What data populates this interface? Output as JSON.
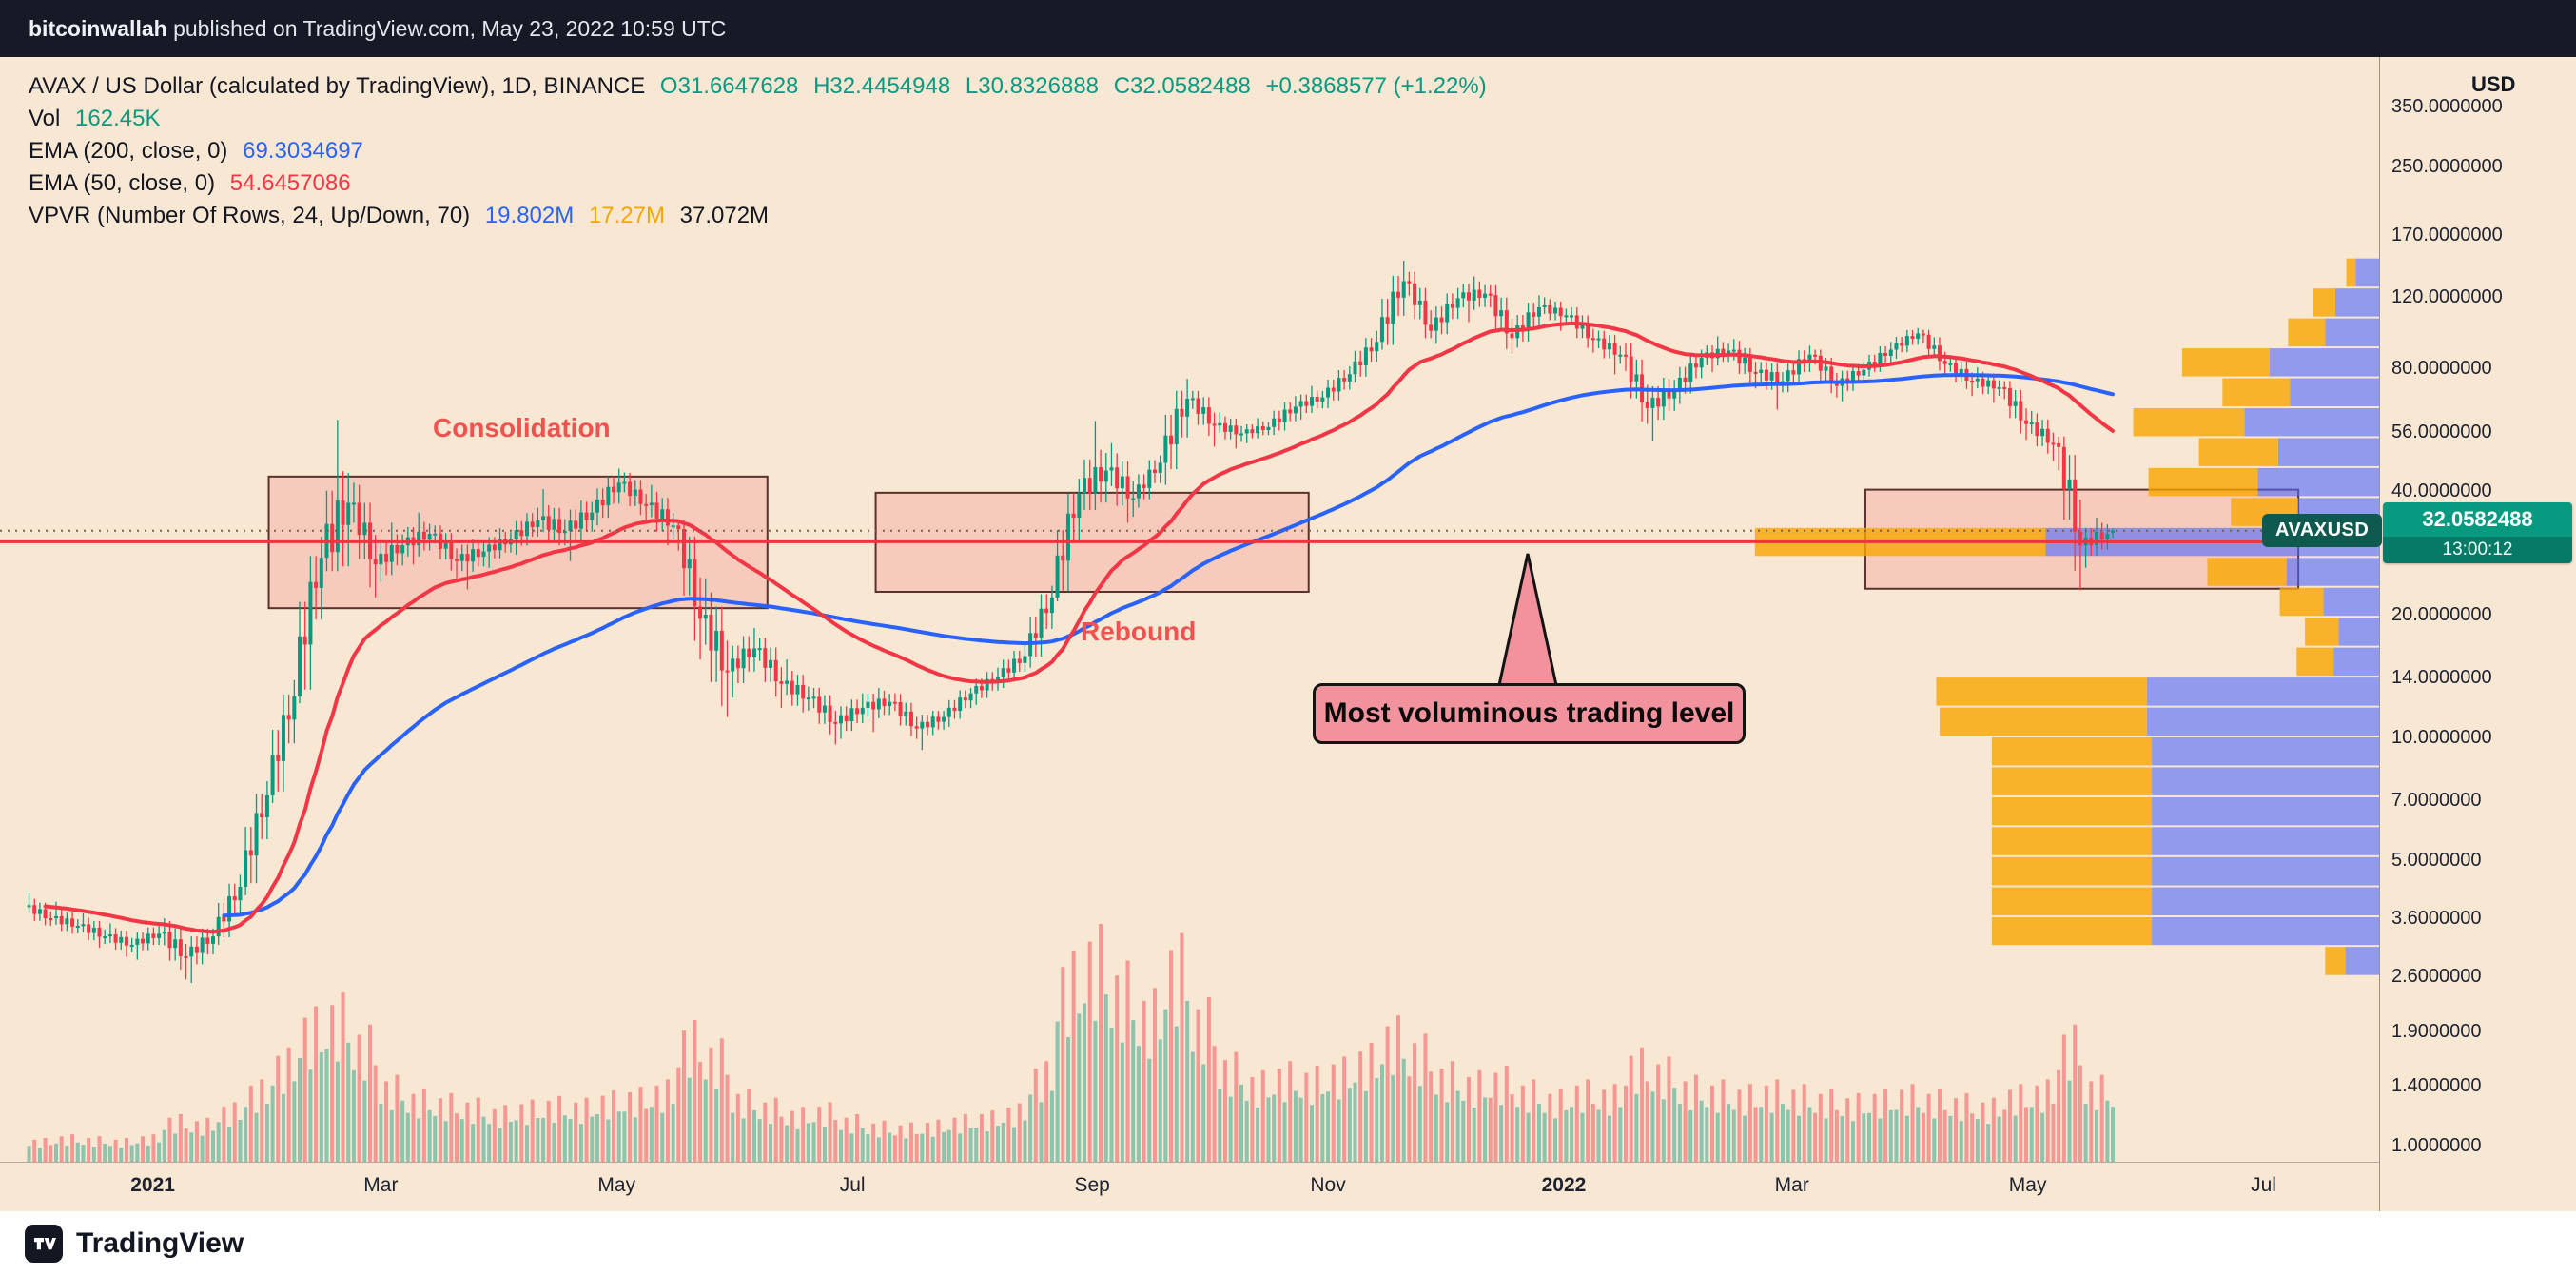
{
  "attribution": {
    "username": "bitcoinwallah",
    "rest": " published on TradingView.com, May 23, 2022 10:59 UTC"
  },
  "legend": {
    "title": "AVAX / US Dollar (calculated by TradingView), 1D, BINANCE",
    "o": "O31.6647628",
    "h": "H32.4454948",
    "l": "L30.8326888",
    "c": "C32.0582488",
    "change": "+0.3868577 (+1.22%)",
    "vol_label": "Vol",
    "vol_value": "162.45K",
    "ema200_label": "EMA (200, close, 0)",
    "ema200_value": "69.3034697",
    "ema50_label": "EMA (50, close, 0)",
    "ema50_value": "54.6457086",
    "vpvr_label": "VPVR (Number Of Rows, 24, Up/Down, 70)",
    "vpvr_up": "19.802M",
    "vpvr_down": "17.27M",
    "vpvr_total": "37.072M"
  },
  "annotations": {
    "consolidation": "Consolidation",
    "rebound": "Rebound",
    "callout": "Most voluminous trading level"
  },
  "price_label": {
    "symbol": "AVAXUSD",
    "price": "32.0582488",
    "countdown": "13:00:12"
  },
  "price_axis": {
    "currency": "USD",
    "ticks": [
      {
        "label": "350.0000000",
        "price": 350
      },
      {
        "label": "250.0000000",
        "price": 250
      },
      {
        "label": "170.0000000",
        "price": 170
      },
      {
        "label": "120.0000000",
        "price": 120
      },
      {
        "label": "80.0000000",
        "price": 80
      },
      {
        "label": "56.0000000",
        "price": 56
      },
      {
        "label": "40.0000000",
        "price": 40
      },
      {
        "label": "20.0000000",
        "price": 20
      },
      {
        "label": "14.0000000",
        "price": 14
      },
      {
        "label": "10.0000000",
        "price": 10
      },
      {
        "label": "7.0000000",
        "price": 7
      },
      {
        "label": "5.0000000",
        "price": 5
      },
      {
        "label": "3.6000000",
        "price": 3.6
      },
      {
        "label": "2.6000000",
        "price": 2.6
      },
      {
        "label": "1.9000000",
        "price": 1.9
      },
      {
        "label": "1.4000000",
        "price": 1.4
      },
      {
        "label": "1.0000000",
        "price": 1.0
      }
    ]
  },
  "time_axis": {
    "ticks": [
      {
        "label": "2021",
        "date": "2021-01-01",
        "bold": true
      },
      {
        "label": "Mar",
        "date": "2021-03-01",
        "bold": false
      },
      {
        "label": "May",
        "date": "2021-05-01",
        "bold": false
      },
      {
        "label": "Jul",
        "date": "2021-07-01",
        "bold": false
      },
      {
        "label": "Sep",
        "date": "2021-09-01",
        "bold": false
      },
      {
        "label": "Nov",
        "date": "2021-11-01",
        "bold": false
      },
      {
        "label": "2022",
        "date": "2022-01-01",
        "bold": true
      },
      {
        "label": "Mar",
        "date": "2022-03-01",
        "bold": false
      },
      {
        "label": "May",
        "date": "2022-05-01",
        "bold": false
      },
      {
        "label": "Jul",
        "date": "2022-07-01",
        "bold": false
      }
    ]
  },
  "footer": {
    "brand": "TradingView"
  },
  "colors": {
    "up": "#089981",
    "down": "#f23645",
    "vol_up": "rgba(8,153,129,0.45)",
    "vol_down": "rgba(242,54,69,0.45)",
    "ema50": "#f23645",
    "ema200": "#2962ff",
    "vpvr_up": "rgba(76,104,255,0.6)",
    "vpvr_down": "rgba(247,166,0,0.8)",
    "zone_fill": "rgba(242,54,69,0.16)",
    "zone_border": "rgba(61,20,20,0.85)",
    "support": "#ef333f",
    "price_line": "#7b6147",
    "callout_bg": "#f2929c",
    "badge_bg": "#089981"
  },
  "chart_data": {
    "type": "candlestick",
    "symbol": "AVAX/USD",
    "exchange": "BINANCE",
    "interval": "1D",
    "scale": "log",
    "title": "AVAX / US Dollar (calculated by TradingView), 1D, BINANCE",
    "current_price": 32.0582488,
    "support_line_price": 30.1,
    "ema50_current": 54.6457086,
    "ema200_current": 69.3034697,
    "ylim": [
      1.0,
      350.0
    ],
    "columns": [
      "week_start",
      "open",
      "high",
      "low",
      "close",
      "volume_K"
    ],
    "weekly_candles": [
      [
        "2020-11-30",
        3.85,
        4.15,
        3.45,
        3.6,
        260
      ],
      [
        "2020-12-07",
        3.6,
        3.95,
        3.3,
        3.45,
        300
      ],
      [
        "2020-12-14",
        3.45,
        3.7,
        3.05,
        3.25,
        280
      ],
      [
        "2020-12-21",
        3.25,
        3.5,
        2.9,
        3.1,
        260
      ],
      [
        "2020-12-28",
        3.1,
        3.45,
        2.85,
        3.3,
        300
      ],
      [
        "2021-01-04",
        3.3,
        3.6,
        2.55,
        2.9,
        520
      ],
      [
        "2021-01-11",
        2.9,
        3.4,
        2.5,
        3.25,
        480
      ],
      [
        "2021-01-18",
        3.25,
        4.6,
        3.1,
        4.3,
        650
      ],
      [
        "2021-01-25",
        4.3,
        7.8,
        4.1,
        7.2,
        900
      ],
      [
        "2021-02-01",
        7.2,
        13.8,
        6.9,
        12.6,
        1250
      ],
      [
        "2021-02-08",
        12.6,
        31.0,
        12.1,
        27.5,
        1700
      ],
      [
        "2021-02-15",
        27.5,
        59.9,
        25.5,
        37.5,
        1850
      ],
      [
        "2021-02-22",
        37.5,
        42.0,
        22.0,
        26.5,
        1500
      ],
      [
        "2021-03-01",
        26.5,
        33.5,
        24.0,
        29.5,
        950
      ],
      [
        "2021-03-08",
        29.5,
        35.5,
        26.5,
        31.5,
        800
      ],
      [
        "2021-03-15",
        31.5,
        33.0,
        24.5,
        27.0,
        750
      ],
      [
        "2021-03-22",
        27.0,
        30.5,
        23.0,
        28.5,
        700
      ],
      [
        "2021-03-29",
        28.5,
        32.5,
        26.0,
        30.5,
        620
      ],
      [
        "2021-04-05",
        30.5,
        36.5,
        28.0,
        34.0,
        680
      ],
      [
        "2021-04-12",
        34.0,
        40.5,
        29.5,
        32.0,
        720
      ],
      [
        "2021-04-19",
        32.0,
        38.0,
        27.0,
        35.5,
        700
      ],
      [
        "2021-04-26",
        35.5,
        45.5,
        33.0,
        42.0,
        780
      ],
      [
        "2021-05-03",
        42.0,
        44.5,
        33.5,
        37.0,
        820
      ],
      [
        "2021-05-10",
        37.0,
        41.5,
        29.5,
        33.0,
        900
      ],
      [
        "2021-05-17",
        33.0,
        34.0,
        15.5,
        19.5,
        1550
      ],
      [
        "2021-05-24",
        19.5,
        24.5,
        11.2,
        14.5,
        1350
      ],
      [
        "2021-05-31",
        14.5,
        18.5,
        12.5,
        16.5,
        800
      ],
      [
        "2021-06-07",
        16.5,
        17.5,
        11.8,
        13.5,
        700
      ],
      [
        "2021-06-14",
        13.5,
        15.5,
        11.5,
        12.5,
        600
      ],
      [
        "2021-06-21",
        12.5,
        13.2,
        9.6,
        10.8,
        650
      ],
      [
        "2021-06-28",
        10.8,
        12.8,
        9.9,
        11.8,
        520
      ],
      [
        "2021-07-05",
        11.8,
        13.2,
        10.3,
        12.2,
        450
      ],
      [
        "2021-07-12",
        12.2,
        12.8,
        9.9,
        10.5,
        430
      ],
      [
        "2021-07-19",
        10.5,
        11.6,
        9.3,
        11.2,
        460
      ],
      [
        "2021-07-26",
        11.2,
        13.2,
        10.6,
        12.8,
        520
      ],
      [
        "2021-08-02",
        12.8,
        14.8,
        12.0,
        14.0,
        560
      ],
      [
        "2021-08-09",
        14.0,
        16.8,
        13.2,
        15.8,
        640
      ],
      [
        "2021-08-16",
        15.8,
        23.5,
        14.8,
        22.0,
        1100
      ],
      [
        "2021-08-23",
        22.0,
        43.0,
        21.5,
        39.5,
        2300
      ],
      [
        "2021-08-30",
        39.5,
        59.5,
        36.0,
        45.0,
        2600
      ],
      [
        "2021-09-06",
        45.0,
        52.5,
        33.5,
        38.5,
        2200
      ],
      [
        "2021-09-13",
        38.5,
        49.0,
        36.5,
        47.0,
        1900
      ],
      [
        "2021-09-20",
        47.0,
        75.5,
        41.5,
        67.5,
        2500
      ],
      [
        "2021-09-27",
        67.5,
        70.5,
        51.5,
        58.0,
        1800
      ],
      [
        "2021-10-04",
        58.0,
        62.5,
        51.0,
        55.5,
        1200
      ],
      [
        "2021-10-11",
        55.5,
        60.5,
        52.5,
        57.5,
        1000
      ],
      [
        "2021-10-18",
        57.5,
        68.5,
        55.0,
        64.5,
        1100
      ],
      [
        "2021-10-25",
        64.5,
        72.5,
        60.0,
        68.0,
        1050
      ],
      [
        "2021-11-01",
        68.0,
        81.0,
        64.0,
        77.5,
        1150
      ],
      [
        "2021-11-08",
        77.5,
        99.0,
        74.0,
        93.0,
        1300
      ],
      [
        "2021-11-15",
        93.0,
        147.0,
        89.0,
        131.0,
        1600
      ],
      [
        "2021-11-22",
        131.0,
        138.0,
        95.0,
        99.0,
        1400
      ],
      [
        "2021-11-29",
        99.0,
        126.0,
        92.0,
        119.0,
        1100
      ],
      [
        "2021-12-06",
        119.0,
        134.5,
        104.0,
        122.0,
        1000
      ],
      [
        "2021-12-13",
        122.0,
        128.0,
        87.0,
        95.0,
        1050
      ],
      [
        "2021-12-20",
        95.0,
        121.0,
        90.0,
        113.0,
        900
      ],
      [
        "2021-12-27",
        113.0,
        119.5,
        99.0,
        108.0,
        800
      ],
      [
        "2022-01-03",
        108.0,
        113.0,
        87.5,
        94.0,
        900
      ],
      [
        "2022-01-10",
        94.0,
        99.0,
        77.5,
        86.5,
        850
      ],
      [
        "2022-01-17",
        86.5,
        92.5,
        58.5,
        64.0,
        1250
      ],
      [
        "2022-01-24",
        64.0,
        76.0,
        53.0,
        70.5,
        1150
      ],
      [
        "2022-01-31",
        70.5,
        89.0,
        65.5,
        85.0,
        950
      ],
      [
        "2022-02-07",
        85.0,
        96.0,
        78.5,
        88.5,
        900
      ],
      [
        "2022-02-14",
        88.5,
        94.5,
        71.5,
        78.0,
        850
      ],
      [
        "2022-02-21",
        78.0,
        83.0,
        63.5,
        74.5,
        900
      ],
      [
        "2022-02-28",
        74.5,
        91.0,
        70.0,
        86.5,
        850
      ],
      [
        "2022-03-07",
        86.5,
        89.0,
        68.0,
        72.5,
        800
      ],
      [
        "2022-03-14",
        72.5,
        83.0,
        66.5,
        79.5,
        750
      ],
      [
        "2022-03-21",
        79.5,
        93.0,
        76.5,
        89.0,
        800
      ],
      [
        "2022-03-28",
        89.0,
        100.5,
        84.5,
        97.5,
        850
      ],
      [
        "2022-04-04",
        97.5,
        99.5,
        77.5,
        82.0,
        800
      ],
      [
        "2022-04-11",
        82.0,
        86.0,
        68.5,
        74.5,
        750
      ],
      [
        "2022-04-18",
        74.5,
        80.5,
        66.0,
        72.0,
        700
      ],
      [
        "2022-04-25",
        72.0,
        74.5,
        53.5,
        58.5,
        850
      ],
      [
        "2022-05-02",
        58.5,
        63.0,
        47.5,
        52.5,
        900
      ],
      [
        "2022-05-09",
        52.5,
        54.5,
        22.9,
        29.5,
        1500
      ],
      [
        "2022-05-16",
        29.5,
        34.5,
        26.0,
        31.5,
        950
      ],
      [
        "2022-05-23",
        31.6647628,
        32.4454948,
        30.8326888,
        32.0582488,
        162.45
      ]
    ],
    "zones": [
      {
        "name": "consolidation-1",
        "from": "2021-01-31",
        "to": "2021-06-09",
        "price_top": 43.5,
        "price_bottom": 20.7
      },
      {
        "name": "consolidation-2",
        "from": "2021-07-07",
        "to": "2021-10-27",
        "price_top": 39.7,
        "price_bottom": 22.7
      },
      {
        "name": "may-2022-range",
        "from": "2022-03-20",
        "to": "2022-07-10",
        "price_top": 40.4,
        "price_bottom": 23.1
      }
    ],
    "vpvr": {
      "num_rows": 24,
      "width_pct": 70,
      "poc": {
        "price_range": [
          27.64,
          32.73
        ],
        "up_M": 19.802,
        "down_M": 17.27,
        "total_M": 37.072
      },
      "rows": [
        {
          "p0": 2.6,
          "p1": 3.08,
          "up": 2.0,
          "down": 1.2
        },
        {
          "p0": 3.08,
          "p1": 3.64,
          "up": 13.5,
          "down": 9.5
        },
        {
          "p0": 3.64,
          "p1": 4.31,
          "up": 13.5,
          "down": 9.5
        },
        {
          "p0": 4.31,
          "p1": 5.11,
          "up": 13.5,
          "down": 9.5
        },
        {
          "p0": 5.11,
          "p1": 6.05,
          "up": 13.5,
          "down": 9.5
        },
        {
          "p0": 6.05,
          "p1": 7.16,
          "up": 13.5,
          "down": 9.5
        },
        {
          "p0": 7.16,
          "p1": 8.48,
          "up": 13.5,
          "down": 9.5
        },
        {
          "p0": 8.48,
          "p1": 10.04,
          "up": 13.5,
          "down": 9.5
        },
        {
          "p0": 10.04,
          "p1": 11.88,
          "up": 13.8,
          "down": 12.3
        },
        {
          "p0": 11.88,
          "p1": 14.07,
          "up": 13.8,
          "down": 12.5
        },
        {
          "p0": 14.07,
          "p1": 16.66,
          "up": 2.7,
          "down": 2.2
        },
        {
          "p0": 16.66,
          "p1": 19.72,
          "up": 2.4,
          "down": 2.0
        },
        {
          "p0": 19.72,
          "p1": 23.35,
          "up": 3.3,
          "down": 2.6
        },
        {
          "p0": 23.35,
          "p1": 27.64,
          "up": 5.5,
          "down": 4.7
        },
        {
          "p0": 27.64,
          "p1": 32.73,
          "up": 19.802,
          "down": 17.27
        },
        {
          "p0": 32.73,
          "p1": 38.75,
          "up": 4.8,
          "down": 4.0
        },
        {
          "p0": 38.75,
          "p1": 45.88,
          "up": 7.2,
          "down": 6.5
        },
        {
          "p0": 45.88,
          "p1": 54.32,
          "up": 6.0,
          "down": 4.7
        },
        {
          "p0": 54.32,
          "p1": 64.31,
          "up": 8.0,
          "down": 6.6
        },
        {
          "p0": 64.31,
          "p1": 76.14,
          "up": 5.3,
          "down": 4.0
        },
        {
          "p0": 76.14,
          "p1": 90.15,
          "up": 6.5,
          "down": 5.2
        },
        {
          "p0": 90.15,
          "p1": 106.73,
          "up": 3.2,
          "down": 2.2
        },
        {
          "p0": 106.73,
          "p1": 126.37,
          "up": 2.6,
          "down": 1.3
        },
        {
          "p0": 126.37,
          "p1": 149.62,
          "up": 1.4,
          "down": 0.55
        }
      ]
    }
  }
}
